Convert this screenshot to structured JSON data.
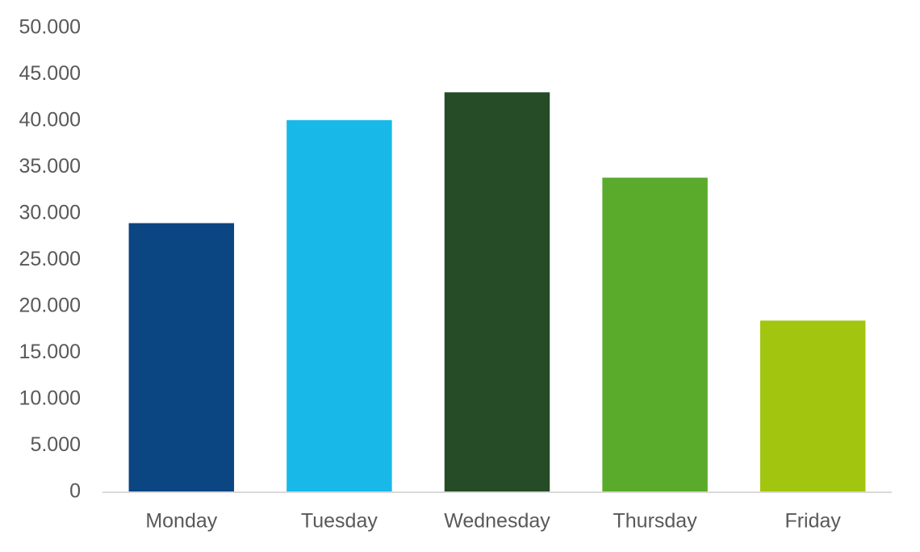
{
  "chart_data": {
    "type": "bar",
    "title": "",
    "xlabel": "",
    "ylabel": "",
    "categories": [
      "Monday",
      "Tuesday",
      "Wednesday",
      "Thursday",
      "Friday"
    ],
    "values": [
      29000,
      40100,
      43100,
      33900,
      18500
    ],
    "bar_colors": [
      "#0b4582",
      "#18b8e8",
      "#254c26",
      "#5aab2b",
      "#a2c50f"
    ],
    "ylim": [
      0,
      50000
    ],
    "yticks": [
      0,
      5000,
      10000,
      15000,
      20000,
      25000,
      30000,
      35000,
      40000,
      45000,
      50000
    ],
    "ytick_labels": [
      "0",
      "5.000",
      "10.000",
      "15.000",
      "20.000",
      "25.000",
      "30.000",
      "35.000",
      "40.000",
      "45.000",
      "50.000"
    ],
    "grid": false,
    "legend": "none"
  }
}
